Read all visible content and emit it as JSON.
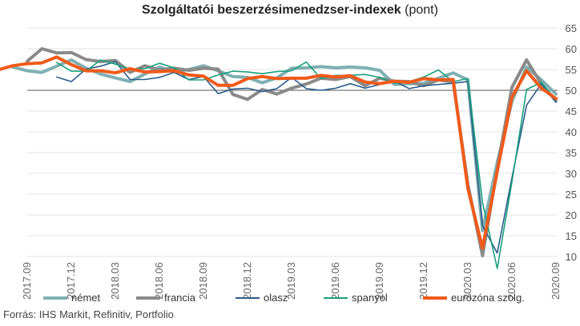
{
  "title": {
    "bold": "Szolgáltatói beszerzésimenedzser-indexek",
    "normal": "(pont)"
  },
  "source": "Forrás: IHS Markit, Refinitiv, Portfolio",
  "chart_data": {
    "type": "line",
    "title": "Szolgáltatói beszerzésimenedzser-indexek (pont)",
    "xlabel": "",
    "ylabel": "",
    "ylim": [
      10,
      65
    ],
    "yticks": [
      10,
      15,
      20,
      25,
      30,
      35,
      40,
      45,
      50,
      55,
      60,
      65
    ],
    "reference_line": 50,
    "grid": "horizontal",
    "legend_position": "bottom",
    "x_tick_labels": [
      "2017.09",
      "2017.12",
      "2018.03",
      "2018.06",
      "2018.09",
      "2018.12",
      "2019.03",
      "2019.06",
      "2019.09",
      "2019.12",
      "2020.03",
      "2020.06",
      "2020.09"
    ],
    "series": [
      {
        "name": "német",
        "color": "#7fb0b3",
        "width": 4,
        "values": [
          55.6,
          54.7,
          54.3,
          55.8,
          57.3,
          55.3,
          53.9,
          53.0,
          52.1,
          53.9,
          55.6,
          54.5,
          55.0,
          55.9,
          54.7,
          53.3,
          53.1,
          51.8,
          53.0,
          55.3,
          55.4,
          55.7,
          55.4,
          55.6,
          55.4,
          54.8,
          51.4,
          51.6,
          51.7,
          52.9,
          54.2,
          52.5,
          16.2,
          32.6,
          47.3,
          55.6,
          52.5,
          49.1
        ]
      },
      {
        "name": "francia",
        "color": "#8a8a8a",
        "width": 4,
        "values": [
          57.0,
          60.0,
          59.0,
          59.1,
          57.4,
          56.9,
          57.2,
          54.3,
          55.9,
          54.9,
          55.3,
          54.8,
          55.3,
          55.1,
          49.0,
          47.8,
          50.2,
          49.1,
          50.5,
          51.5,
          52.9,
          52.6,
          53.3,
          51.1,
          52.9,
          52.2,
          52.1,
          51.1,
          52.5,
          52.0,
          27.4,
          10.2,
          31.1,
          50.7,
          57.3,
          51.5,
          47.5
        ]
      },
      {
        "name": "olasz",
        "color": "#2b5d8a",
        "width": 1.6,
        "values": [
          53.2,
          52.1,
          55.1,
          55.8,
          56.9,
          52.6,
          52.6,
          53.1,
          54.3,
          52.6,
          53.3,
          49.2,
          50.3,
          50.5,
          49.7,
          50.4,
          53.1,
          50.4,
          50.0,
          50.5,
          51.6,
          50.5,
          51.4,
          52.2,
          50.4,
          51.1,
          51.4,
          51.7,
          52.1,
          17.4,
          10.8,
          28.9,
          46.4,
          51.6,
          47.1
        ]
      },
      {
        "name": "spanyol",
        "color": "#19a07e",
        "width": 1.6,
        "values": [
          56.7,
          54.6,
          54.6,
          57.3,
          56.3,
          55.1,
          55.2,
          56.5,
          55.4,
          52.5,
          52.5,
          53.7,
          54.6,
          54.4,
          54.0,
          54.5,
          54.7,
          56.8,
          52.8,
          53.6,
          53.6,
          53.8,
          53.1,
          51.7,
          52.1,
          53.2,
          54.9,
          52.1,
          52.8,
          23.0,
          7.1,
          27.9,
          50.2,
          51.9,
          47.7
        ]
      },
      {
        "name": "eurózóna szolg.",
        "color": "#f05a1a",
        "width": 4,
        "values": [
          54.9,
          55.9,
          56.4,
          56.6,
          58.0,
          56.2,
          54.7,
          54.7,
          54.2,
          55.2,
          54.4,
          54.5,
          54.7,
          53.7,
          53.4,
          51.2,
          51.2,
          52.8,
          53.3,
          52.8,
          52.9,
          52.9,
          53.6,
          53.2,
          53.5,
          52.0,
          51.6,
          52.2,
          51.9,
          52.8,
          52.5,
          52.6,
          26.4,
          12.0,
          30.5,
          48.3,
          54.7,
          50.5,
          48.0
        ]
      }
    ]
  }
}
